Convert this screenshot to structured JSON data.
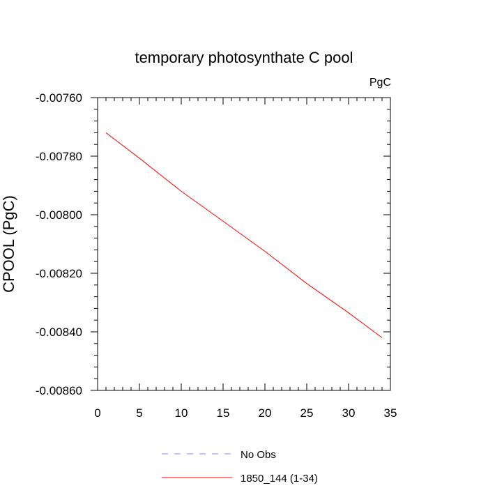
{
  "chart_data": {
    "type": "line",
    "title": "temporary photosynthate C pool",
    "units_label": "PgC",
    "ylabel": "CPOOL  (PgC)",
    "xlabel": "",
    "xlim": [
      0,
      35
    ],
    "ylim": [
      -0.0086,
      -0.0076
    ],
    "x_ticks": [
      0,
      5,
      10,
      15,
      20,
      25,
      30,
      35
    ],
    "x_tick_labels": [
      "0",
      "5",
      "10",
      "15",
      "20",
      "25",
      "30",
      "35"
    ],
    "y_ticks": [
      -0.0076,
      -0.0078,
      -0.008,
      -0.0082,
      -0.0084,
      -0.0086
    ],
    "y_tick_labels": [
      "-0.00760",
      "-0.00780",
      "-0.00800",
      "-0.00820",
      "-0.00840",
      "-0.00860"
    ],
    "grid": false,
    "legend_position": "bottom",
    "series": [
      {
        "name": "1850_144 (1-34)",
        "color": "#ff0000",
        "dash": "solid",
        "x": [
          1,
          5,
          10,
          15,
          20,
          25,
          30,
          34
        ],
        "y": [
          -0.00772,
          -0.007807,
          -0.00792,
          -0.008022,
          -0.008125,
          -0.008235,
          -0.008335,
          -0.00842
        ]
      },
      {
        "name": "No Obs",
        "color": "#8888ff",
        "dash": "dashed",
        "x": [],
        "y": []
      }
    ]
  }
}
